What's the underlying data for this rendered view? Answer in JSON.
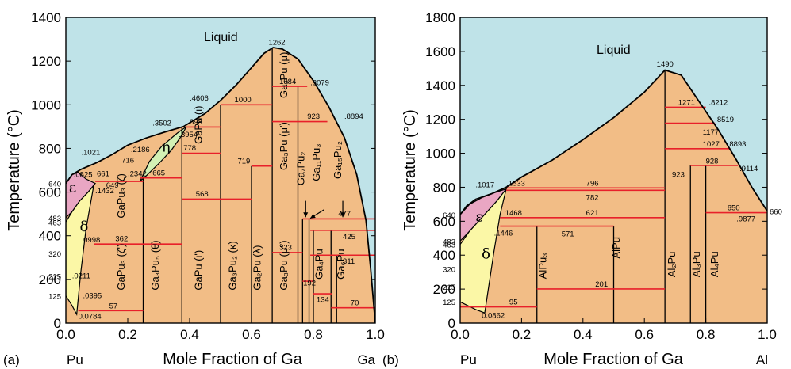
{
  "colors": {
    "liquid": "#bfe3e8",
    "solid": "#f2bd86",
    "delta": "#fbf7a6",
    "epsilon": "#e9a6c3",
    "eta": "#d3f1b4",
    "red_line": "#e8202a",
    "boundary": "#000000"
  },
  "chart_data": [
    {
      "panel_label": "(a)",
      "type": "phase-diagram",
      "x_left_label": "Pu",
      "xlabel": "Mole Fraction of Ga",
      "x_right_label": "Ga",
      "ylabel": "Temperature (°C)",
      "xlim": [
        0.0,
        1.0
      ],
      "ylim": [
        0,
        1400
      ],
      "x_ticks": [
        "0.0",
        "0.2",
        "0.4",
        "0.6",
        "0.8",
        "1.0"
      ],
      "y_ticks": [
        "0",
        "200",
        "400",
        "600",
        "800",
        "1000",
        "1200",
        "1400"
      ],
      "liquid_label": "Liquid",
      "liquidus": [
        [
          0.0,
          640
        ],
        [
          0.02,
          680
        ],
        [
          0.05,
          705
        ],
        [
          0.1,
          735
        ],
        [
          0.15,
          772
        ],
        [
          0.2,
          815
        ],
        [
          0.26,
          848
        ],
        [
          0.32,
          875
        ],
        [
          0.38,
          900
        ],
        [
          0.45,
          960
        ],
        [
          0.5,
          1020
        ],
        [
          0.55,
          1090
        ],
        [
          0.6,
          1170
        ],
        [
          0.64,
          1235
        ],
        [
          0.67,
          1262
        ],
        [
          0.7,
          1255
        ],
        [
          0.75,
          1210
        ],
        [
          0.8,
          1110
        ],
        [
          0.85,
          990
        ],
        [
          0.9,
          850
        ],
        [
          0.94,
          680
        ],
        [
          0.97,
          470
        ],
        [
          0.985,
          250
        ],
        [
          1.0,
          0
        ]
      ],
      "delta_region": [
        [
          0.0,
          463
        ],
        [
          0.02,
          510
        ],
        [
          0.045,
          560
        ],
        [
          0.072,
          600
        ],
        [
          0.09,
          630
        ],
        [
          0.065,
          430
        ],
        [
          0.048,
          230
        ],
        [
          0.035,
          40
        ],
        [
          0.02,
          80
        ],
        [
          0.0,
          125
        ]
      ],
      "epsilon_region": [
        [
          0.0,
          483
        ],
        [
          0.0,
          640
        ],
        [
          0.02,
          680
        ],
        [
          0.04,
          690
        ],
        [
          0.065,
          660
        ],
        [
          0.095,
          640
        ],
        [
          0.072,
          600
        ],
        [
          0.045,
          560
        ],
        [
          0.02,
          510
        ]
      ],
      "eta_region": [
        [
          0.24,
          650
        ],
        [
          0.27,
          740
        ],
        [
          0.31,
          810
        ],
        [
          0.36,
          870
        ],
        [
          0.39,
          900
        ],
        [
          0.37,
          850
        ],
        [
          0.34,
          790
        ],
        [
          0.3,
          730
        ],
        [
          0.26,
          675
        ]
      ],
      "horizontal_lines": [
        {
          "y": 57,
          "x1": 0.04,
          "x2": 0.25
        },
        {
          "y": 362,
          "x1": 0.09,
          "x2": 0.375
        },
        {
          "y": 649,
          "x1": 0.095,
          "x2": 0.25
        },
        {
          "y": 665,
          "x1": 0.24,
          "x2": 0.375
        },
        {
          "y": 568,
          "x1": 0.375,
          "x2": 0.6
        },
        {
          "y": 778,
          "x1": 0.375,
          "x2": 0.5
        },
        {
          "y": 898,
          "x1": 0.39,
          "x2": 0.5
        },
        {
          "y": 719,
          "x1": 0.6,
          "x2": 0.667
        },
        {
          "y": 1000,
          "x1": 0.5,
          "x2": 0.667
        },
        {
          "y": 1084,
          "x1": 0.667,
          "x2": 0.78
        },
        {
          "y": 923,
          "x1": 0.667,
          "x2": 0.845
        },
        {
          "y": 323,
          "x1": 0.667,
          "x2": 0.765
        },
        {
          "y": 477,
          "x1": 0.765,
          "x2": 1.0
        },
        {
          "y": 425,
          "x1": 0.79,
          "x2": 1.0
        },
        {
          "y": 311,
          "x1": 0.79,
          "x2": 1.0
        },
        {
          "y": 192,
          "x1": 0.765,
          "x2": 0.8
        },
        {
          "y": 134,
          "x1": 0.8,
          "x2": 0.86
        },
        {
          "y": 70,
          "x1": 0.857,
          "x2": 1.0
        }
      ],
      "vertical_lines": [
        {
          "x": 0.25,
          "y1": 0,
          "y2": 665
        },
        {
          "x": 0.375,
          "y1": 0,
          "y2": 900
        },
        {
          "x": 0.5,
          "y1": 0,
          "y2": 1000
        },
        {
          "x": 0.6,
          "y1": 0,
          "y2": 719
        },
        {
          "x": 0.667,
          "y1": 0,
          "y2": 1262
        },
        {
          "x": 0.75,
          "y1": 0,
          "y2": 1084
        },
        {
          "x": 0.765,
          "y1": 0,
          "y2": 477
        },
        {
          "x": 0.786,
          "y1": 0,
          "y2": 477
        },
        {
          "x": 0.8,
          "y1": 0,
          "y2": 425
        },
        {
          "x": 0.857,
          "y1": 0,
          "y2": 425
        },
        {
          "x": 0.875,
          "y1": 0,
          "y2": 311
        }
      ],
      "annotations": [
        {
          "text": "1262",
          "x": 0.655,
          "y": 1275
        },
        {
          "text": "1084",
          "x": 0.69,
          "y": 1095
        },
        {
          "text": ".8079",
          "x": 0.79,
          "y": 1090
        },
        {
          "text": "923",
          "x": 0.78,
          "y": 935
        },
        {
          "text": ".8894",
          "x": 0.9,
          "y": 935
        },
        {
          "text": ".4606",
          "x": 0.4,
          "y": 1020
        },
        {
          "text": "1000",
          "x": 0.545,
          "y": 1012
        },
        {
          "text": ".3502",
          "x": 0.28,
          "y": 905
        },
        {
          "text": "898",
          "x": 0.4,
          "y": 910
        },
        {
          "text": ".3954",
          "x": 0.365,
          "y": 852
        },
        {
          "text": "778",
          "x": 0.38,
          "y": 790
        },
        {
          "text": "719",
          "x": 0.555,
          "y": 730
        },
        {
          "text": ".2186",
          "x": 0.21,
          "y": 783
        },
        {
          "text": ".1021",
          "x": 0.05,
          "y": 770
        },
        {
          "text": "716",
          "x": 0.18,
          "y": 735
        },
        {
          "text": ".0825",
          "x": 0.025,
          "y": 670
        },
        {
          "text": "661",
          "x": 0.1,
          "y": 672
        },
        {
          "text": ".2342",
          "x": 0.2,
          "y": 672
        },
        {
          "text": "665",
          "x": 0.28,
          "y": 677
        },
        {
          "text": "649",
          "x": 0.13,
          "y": 620
        },
        {
          "text": ".1432",
          "x": 0.095,
          "y": 595
        },
        {
          "text": "568",
          "x": 0.42,
          "y": 580
        },
        {
          "text": "477",
          "x": 0.88,
          "y": 490
        },
        {
          "text": "425",
          "x": 0.895,
          "y": 385
        },
        {
          "text": ".0998",
          "x": 0.05,
          "y": 370
        },
        {
          "text": "362",
          "x": 0.16,
          "y": 375
        },
        {
          "text": "323",
          "x": 0.69,
          "y": 335
        },
        {
          "text": "311",
          "x": 0.895,
          "y": 272
        },
        {
          "text": ".0211",
          "x": 0.02,
          "y": 205
        },
        {
          "text": "192",
          "x": 0.767,
          "y": 173
        },
        {
          "text": ".0395",
          "x": 0.055,
          "y": 115
        },
        {
          "text": "134",
          "x": 0.81,
          "y": 96
        },
        {
          "text": "57",
          "x": 0.14,
          "y": 68
        },
        {
          "text": "70",
          "x": 0.92,
          "y": 82
        },
        {
          "text": "0.0784",
          "x": 0.04,
          "y": 20
        }
      ],
      "extra_y_labels": [
        {
          "text": "640",
          "y": 640
        },
        {
          "text": "483",
          "y": 483
        },
        {
          "text": "463",
          "y": 463
        },
        {
          "text": "320",
          "y": 320
        },
        {
          "text": "215",
          "y": 215
        },
        {
          "text": "125",
          "y": 125
        }
      ],
      "phase_labels": [
        {
          "text": "GaPu₃ (ζ)",
          "x": 0.19,
          "y": 480
        },
        {
          "text": "GaPu₃ (ζ')",
          "x": 0.19,
          "y": 150
        },
        {
          "text": "Ga₃Pu₅ (θ)",
          "x": 0.3,
          "y": 150
        },
        {
          "text": "GaPu (ι)",
          "x": 0.44,
          "y": 820
        },
        {
          "text": "GaPu (ι')",
          "x": 0.44,
          "y": 150
        },
        {
          "text": "Ga₃Pu₂ (κ)",
          "x": 0.55,
          "y": 150
        },
        {
          "text": "Ga₂Pu (λ)",
          "x": 0.63,
          "y": 150
        },
        {
          "text": "Ga₃Pu (μ)",
          "x": 0.715,
          "y": 1030
        },
        {
          "text": "Ga₃Pu (μ')",
          "x": 0.715,
          "y": 700
        },
        {
          "text": "Ga₃Pu (μ'')",
          "x": 0.715,
          "y": 150
        },
        {
          "text": "Ga₇Pu₂",
          "x": 0.77,
          "y": 630
        },
        {
          "text": "Ga₁₁Pu₃",
          "x": 0.82,
          "y": 650
        },
        {
          "text": "Ga₁₅Pu₂",
          "x": 0.89,
          "y": 660
        },
        {
          "text": "Ga₄Pu",
          "x": 0.83,
          "y": 200
        },
        {
          "text": "Ga₆Pu",
          "x": 0.9,
          "y": 200
        }
      ],
      "region_labels": [
        {
          "text": "δ",
          "x": 0.045,
          "y": 420
        },
        {
          "text": "ε",
          "x": 0.01,
          "y": 600
        },
        {
          "text": "η",
          "x": 0.31,
          "y": 785
        }
      ]
    },
    {
      "panel_label": "(b)",
      "type": "phase-diagram",
      "x_left_label": "Pu",
      "xlabel": "Mole Fraction of Ga",
      "x_right_label": "Al",
      "ylabel": "Temperature (°C)",
      "xlim": [
        0.0,
        1.0
      ],
      "ylim": [
        0,
        1800
      ],
      "x_ticks": [
        "0.0",
        "0.2",
        "0.4",
        "0.6",
        "0.8",
        "1.0"
      ],
      "y_ticks": [
        "0",
        "200",
        "400",
        "600",
        "800",
        "1000",
        "1200",
        "1400",
        "1600",
        "1800"
      ],
      "liquid_label": "Liquid",
      "liquidus": [
        [
          0.0,
          640
        ],
        [
          0.03,
          700
        ],
        [
          0.07,
          740
        ],
        [
          0.1,
          760
        ],
        [
          0.15,
          800
        ],
        [
          0.2,
          860
        ],
        [
          0.3,
          960
        ],
        [
          0.4,
          1080
        ],
        [
          0.5,
          1210
        ],
        [
          0.6,
          1360
        ],
        [
          0.667,
          1490
        ],
        [
          0.72,
          1460
        ],
        [
          0.78,
          1300
        ],
        [
          0.84,
          1140
        ],
        [
          0.9,
          960
        ],
        [
          0.95,
          800
        ],
        [
          1.0,
          660
        ]
      ],
      "delta_region": [
        [
          0.0,
          463
        ],
        [
          0.03,
          540
        ],
        [
          0.08,
          640
        ],
        [
          0.12,
          720
        ],
        [
          0.15,
          790
        ],
        [
          0.13,
          640
        ],
        [
          0.11,
          420
        ],
        [
          0.09,
          180
        ],
        [
          0.08,
          60
        ],
        [
          0.05,
          80
        ],
        [
          0.0,
          125
        ]
      ],
      "epsilon_region": [
        [
          0.0,
          483
        ],
        [
          0.0,
          640
        ],
        [
          0.02,
          690
        ],
        [
          0.05,
          730
        ],
        [
          0.09,
          755
        ],
        [
          0.15,
          790
        ],
        [
          0.12,
          720
        ],
        [
          0.08,
          640
        ],
        [
          0.03,
          540
        ]
      ],
      "horizontal_lines": [
        {
          "y": 95,
          "x1": 0.0,
          "x2": 0.25
        },
        {
          "y": 201,
          "x1": 0.25,
          "x2": 0.667
        },
        {
          "y": 571,
          "x1": 0.13,
          "x2": 0.5
        },
        {
          "y": 621,
          "x1": 0.13,
          "x2": 0.667
        },
        {
          "y": 782,
          "x1": 0.15,
          "x2": 0.667
        },
        {
          "y": 796,
          "x1": 0.15,
          "x2": 0.667
        },
        {
          "y": 650,
          "x1": 0.8,
          "x2": 1.0
        },
        {
          "y": 928,
          "x1": 0.75,
          "x2": 0.905
        },
        {
          "y": 1027,
          "x1": 0.667,
          "x2": 0.88
        },
        {
          "y": 1177,
          "x1": 0.667,
          "x2": 0.83
        },
        {
          "y": 1271,
          "x1": 0.667,
          "x2": 0.8
        }
      ],
      "vertical_lines": [
        {
          "x": 0.25,
          "y1": 0,
          "y2": 571
        },
        {
          "x": 0.5,
          "y1": 0,
          "y2": 571
        },
        {
          "x": 0.667,
          "y1": 0,
          "y2": 1490
        },
        {
          "x": 0.75,
          "y1": 0,
          "y2": 928
        },
        {
          "x": 0.8,
          "y1": 0,
          "y2": 928
        }
      ],
      "annotations": [
        {
          "text": "1490",
          "x": 0.64,
          "y": 1510
        },
        {
          "text": "1271",
          "x": 0.71,
          "y": 1285
        },
        {
          "text": ".8212",
          "x": 0.81,
          "y": 1285
        },
        {
          "text": ".8519",
          "x": 0.83,
          "y": 1185
        },
        {
          "text": "1177",
          "x": 0.79,
          "y": 1110
        },
        {
          "text": "1027",
          "x": 0.79,
          "y": 1040
        },
        {
          "text": ".8893",
          "x": 0.87,
          "y": 1040
        },
        {
          "text": "923",
          "x": 0.69,
          "y": 860
        },
        {
          "text": "928",
          "x": 0.8,
          "y": 940
        },
        {
          "text": ".9114",
          "x": 0.91,
          "y": 895
        },
        {
          "text": ".1017",
          "x": 0.05,
          "y": 800
        },
        {
          "text": ".1533",
          "x": 0.15,
          "y": 810
        },
        {
          "text": "796",
          "x": 0.41,
          "y": 810
        },
        {
          "text": "782",
          "x": 0.41,
          "y": 725
        },
        {
          "text": ".1468",
          "x": 0.14,
          "y": 635
        },
        {
          "text": "621",
          "x": 0.41,
          "y": 635
        },
        {
          "text": ".1446",
          "x": 0.11,
          "y": 515
        },
        {
          "text": "571",
          "x": 0.33,
          "y": 510
        },
        {
          "text": "650",
          "x": 0.87,
          "y": 665
        },
        {
          "text": ".9877",
          "x": 0.9,
          "y": 600
        },
        {
          "text": "201",
          "x": 0.44,
          "y": 215
        },
        {
          "text": "95",
          "x": 0.16,
          "y": 110
        },
        {
          "text": "0.0862",
          "x": 0.07,
          "y": 30
        }
      ],
      "extra_y_labels": [
        {
          "text": "640",
          "y": 640
        },
        {
          "text": "483",
          "y": 483
        },
        {
          "text": "463",
          "y": 463
        },
        {
          "text": "320",
          "y": 320
        },
        {
          "text": "215",
          "y": 215
        },
        {
          "text": "125",
          "y": 125
        }
      ],
      "right_y_labels": [
        {
          "text": "660",
          "y": 660
        }
      ],
      "phase_labels": [
        {
          "text": "AlPu₃",
          "x": 0.28,
          "y": 260
        },
        {
          "text": "AlPu",
          "x": 0.52,
          "y": 380
        },
        {
          "text": "Al₂Pu",
          "x": 0.7,
          "y": 270
        },
        {
          "text": "Al₃Pu",
          "x": 0.78,
          "y": 270
        },
        {
          "text": "Al₄Pu",
          "x": 0.84,
          "y": 270
        }
      ],
      "region_labels": [
        {
          "text": "δ",
          "x": 0.07,
          "y": 380
        },
        {
          "text": "ε",
          "x": 0.05,
          "y": 600
        }
      ]
    }
  ]
}
